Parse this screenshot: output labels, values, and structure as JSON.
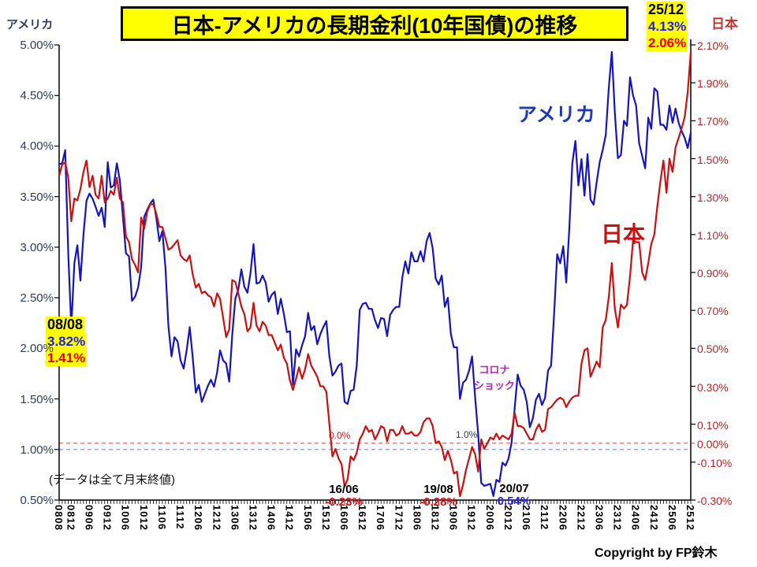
{
  "title": "日本-アメリカの長期金利(10年国債)の推移",
  "footnote": "(データは全て月末終値)",
  "copyright": "Copyright by FP鈴木",
  "chart_data": {
    "type": "line",
    "grid": false,
    "background": "#FFFFFF",
    "left_axis": {
      "title": "アメリカ",
      "min": 0.5,
      "max": 5.0,
      "ticks": [
        {
          "value": 5.0,
          "label": "5.00%"
        },
        {
          "value": 4.5,
          "label": "4.50%"
        },
        {
          "value": 4.0,
          "label": "4.00%"
        },
        {
          "value": 3.5,
          "label": "3.50%"
        },
        {
          "value": 3.0,
          "label": "3.00%"
        },
        {
          "value": 2.5,
          "label": "2.50%"
        },
        {
          "value": 2.0,
          "label": "2.00%"
        },
        {
          "value": 1.5,
          "label": "1.50%"
        },
        {
          "value": 1.0,
          "label": "1.00%"
        },
        {
          "value": 0.5,
          "label": "0.50%"
        }
      ],
      "reference_line": {
        "value": 1.0,
        "label": "1.0%",
        "color": "#8A94D8"
      }
    },
    "right_axis": {
      "title": "日本",
      "min": -0.3,
      "max": 2.1,
      "ticks": [
        {
          "value": 2.1,
          "label": "2.10%"
        },
        {
          "value": 1.9,
          "label": "1.90%"
        },
        {
          "value": 1.7,
          "label": "1.70%"
        },
        {
          "value": 1.5,
          "label": "1.50%"
        },
        {
          "value": 1.3,
          "label": "1.30%"
        },
        {
          "value": 1.1,
          "label": "1.10%"
        },
        {
          "value": 0.9,
          "label": "0.90%"
        },
        {
          "value": 0.7,
          "label": "0.70%"
        },
        {
          "value": 0.5,
          "label": "0.50%"
        },
        {
          "value": 0.3,
          "label": "0.30%"
        },
        {
          "value": 0.1,
          "label": "0.10%"
        },
        {
          "value": 0.0,
          "label": "0.00%",
          "tick": false
        },
        {
          "value": -0.1,
          "label": "-0.10%"
        },
        {
          "value": -0.3,
          "label": "-0.30%"
        }
      ],
      "reference_line": {
        "value": 0.0,
        "label": "0.0%",
        "color": "#E86A6A"
      }
    },
    "x_labels": [
      [
        "0808",
        0
      ],
      [
        "0812",
        4
      ],
      [
        "0906",
        10
      ],
      [
        "0912",
        16
      ],
      [
        "1006",
        22
      ],
      [
        "1012",
        28
      ],
      [
        "1106",
        34
      ],
      [
        "1112",
        40
      ],
      [
        "1206",
        46
      ],
      [
        "1212",
        52
      ],
      [
        "1306",
        58
      ],
      [
        "1312",
        64
      ],
      [
        "1406",
        70
      ],
      [
        "1412",
        76
      ],
      [
        "1506",
        82
      ],
      [
        "1512",
        88
      ],
      [
        "1606",
        94
      ],
      [
        "1612",
        100
      ],
      [
        "1706",
        106
      ],
      [
        "1712",
        112
      ],
      [
        "1806",
        118
      ],
      [
        "1812",
        124
      ],
      [
        "1906",
        130
      ],
      [
        "1912",
        136
      ],
      [
        "2006",
        142
      ],
      [
        "2012",
        148
      ],
      [
        "2106",
        154
      ],
      [
        "2112",
        160
      ],
      [
        "2206",
        166
      ],
      [
        "2212",
        172
      ],
      [
        "2306",
        178
      ],
      [
        "2312",
        184
      ],
      [
        "2406",
        190
      ],
      [
        "2412",
        196
      ],
      [
        "2506",
        202
      ],
      [
        "2512",
        208
      ]
    ],
    "series": [
      {
        "name": "アメリカ",
        "axis": "left",
        "color": "#1515BD",
        "start_month": "2008-08",
        "values": [
          3.82,
          3.83,
          3.96,
          2.93,
          2.21,
          2.84,
          3.02,
          2.67,
          3.12,
          3.46,
          3.53,
          3.48,
          3.4,
          3.31,
          3.39,
          3.2,
          3.84,
          3.59,
          3.61,
          3.83,
          3.66,
          3.3,
          2.94,
          2.91,
          2.47,
          2.51,
          2.6,
          2.8,
          3.3,
          3.37,
          3.43,
          3.47,
          3.29,
          3.06,
          3.16,
          2.8,
          2.22,
          1.92,
          2.11,
          2.07,
          1.88,
          1.8,
          1.98,
          2.21,
          1.91,
          1.56,
          1.64,
          1.47,
          1.55,
          1.63,
          1.69,
          1.62,
          1.76,
          1.98,
          1.88,
          1.85,
          1.67,
          2.13,
          2.49,
          2.58,
          2.78,
          2.61,
          2.55,
          2.74,
          3.03,
          2.64,
          2.65,
          2.72,
          2.65,
          2.46,
          2.53,
          2.56,
          2.34,
          2.49,
          2.34,
          2.16,
          2.17,
          1.64,
          1.99,
          1.92,
          2.03,
          2.12,
          2.35,
          2.18,
          2.22,
          2.04,
          2.14,
          2.21,
          2.27,
          1.92,
          1.73,
          1.77,
          1.83,
          1.85,
          1.47,
          1.45,
          1.58,
          1.59,
          1.83,
          2.38,
          2.44,
          2.45,
          2.39,
          2.39,
          2.28,
          2.2,
          2.3,
          2.29,
          2.12,
          2.33,
          2.38,
          2.41,
          2.41,
          2.7,
          2.86,
          2.74,
          2.95,
          2.86,
          2.86,
          2.96,
          2.86,
          3.06,
          3.14,
          2.99,
          2.69,
          2.63,
          2.72,
          2.41,
          2.5,
          2.14,
          2.01,
          2.01,
          1.5,
          1.66,
          1.69,
          1.78,
          1.92,
          1.51,
          1.15,
          0.67,
          0.64,
          0.65,
          0.66,
          0.54,
          0.7,
          0.68,
          0.87,
          0.84,
          0.91,
          1.07,
          1.4,
          1.74,
          1.63,
          1.59,
          1.47,
          1.22,
          1.31,
          1.49,
          1.55,
          1.44,
          1.51,
          1.78,
          1.83,
          2.34,
          2.93,
          2.84,
          3.01,
          2.65,
          3.19,
          3.83,
          4.05,
          3.61,
          3.87,
          3.51,
          3.92,
          3.47,
          3.42,
          3.64,
          3.84,
          3.96,
          4.11,
          4.57,
          4.93,
          4.33,
          3.88,
          3.91,
          4.25,
          4.2,
          4.68,
          4.5,
          4.4,
          4.03,
          3.9,
          3.78,
          4.28,
          4.17,
          4.57,
          4.54,
          4.21,
          4.21,
          4.16,
          4.4,
          4.23,
          4.37,
          4.23,
          4.15,
          4.08,
          3.98,
          4.13
        ]
      },
      {
        "name": "日本",
        "axis": "right",
        "color": "#CC0F0F",
        "start_month": "2008-08",
        "values": [
          1.41,
          1.47,
          1.48,
          1.4,
          1.17,
          1.29,
          1.28,
          1.34,
          1.43,
          1.49,
          1.35,
          1.41,
          1.31,
          1.29,
          1.41,
          1.27,
          1.29,
          1.33,
          1.31,
          1.4,
          1.29,
          1.27,
          1.09,
          1.06,
          0.97,
          0.94,
          0.9,
          1.19,
          1.13,
          1.22,
          1.26,
          1.26,
          1.21,
          1.14,
          1.14,
          1.08,
          1.02,
          1.03,
          1.05,
          1.07,
          0.99,
          0.97,
          0.96,
          0.99,
          0.89,
          0.82,
          0.84,
          0.79,
          0.8,
          0.78,
          0.77,
          0.72,
          0.79,
          0.76,
          0.66,
          0.56,
          0.6,
          0.86,
          0.85,
          0.79,
          0.72,
          0.68,
          0.59,
          0.61,
          0.74,
          0.62,
          0.59,
          0.64,
          0.62,
          0.57,
          0.57,
          0.53,
          0.49,
          0.52,
          0.45,
          0.42,
          0.33,
          0.28,
          0.34,
          0.4,
          0.34,
          0.39,
          0.47,
          0.41,
          0.38,
          0.35,
          0.3,
          0.3,
          0.27,
          0.1,
          -0.07,
          -0.03,
          -0.08,
          -0.11,
          -0.23,
          -0.19,
          -0.07,
          -0.09,
          -0.05,
          0.02,
          0.05,
          0.09,
          0.06,
          0.07,
          0.02,
          0.05,
          0.09,
          0.08,
          0.01,
          0.07,
          0.07,
          0.04,
          0.05,
          0.09,
          0.05,
          0.05,
          0.06,
          0.04,
          0.04,
          0.06,
          0.11,
          0.13,
          0.13,
          0.09,
          0.0,
          0.01,
          -0.02,
          -0.09,
          -0.04,
          -0.09,
          -0.16,
          -0.15,
          -0.28,
          -0.22,
          -0.14,
          -0.08,
          -0.02,
          -0.06,
          -0.15,
          0.02,
          -0.03,
          0.0,
          0.03,
          0.02,
          0.05,
          0.02,
          0.04,
          0.03,
          0.02,
          0.05,
          0.16,
          0.09,
          0.09,
          0.08,
          0.05,
          0.02,
          0.02,
          0.07,
          0.1,
          0.06,
          0.07,
          0.18,
          0.19,
          0.21,
          0.23,
          0.24,
          0.23,
          0.19,
          0.22,
          0.24,
          0.25,
          0.25,
          0.42,
          0.49,
          0.5,
          0.35,
          0.39,
          0.43,
          0.4,
          0.61,
          0.65,
          0.77,
          0.95,
          0.71,
          0.61,
          0.73,
          0.71,
          0.73,
          0.88,
          1.07,
          1.06,
          1.06,
          0.9,
          0.86,
          0.95,
          1.05,
          1.1,
          1.25,
          1.38,
          1.49,
          1.32,
          1.5,
          1.43,
          1.56,
          1.61,
          1.66,
          1.72,
          1.85,
          2.06
        ]
      }
    ],
    "annotations": {
      "start": {
        "date": "08/08",
        "us": "3.82%",
        "jp": "1.41%"
      },
      "end": {
        "date": "25/12",
        "us": "4.13%",
        "jp": "2.06%"
      },
      "corona": {
        "line1": "コロナ",
        "line2": "ショック"
      },
      "troughs": [
        {
          "date": "16/06",
          "value": "-0.23%"
        },
        {
          "date": "19/08",
          "value": "-0.28%"
        },
        {
          "date": "20/07",
          "value": "0.54%"
        }
      ]
    }
  }
}
